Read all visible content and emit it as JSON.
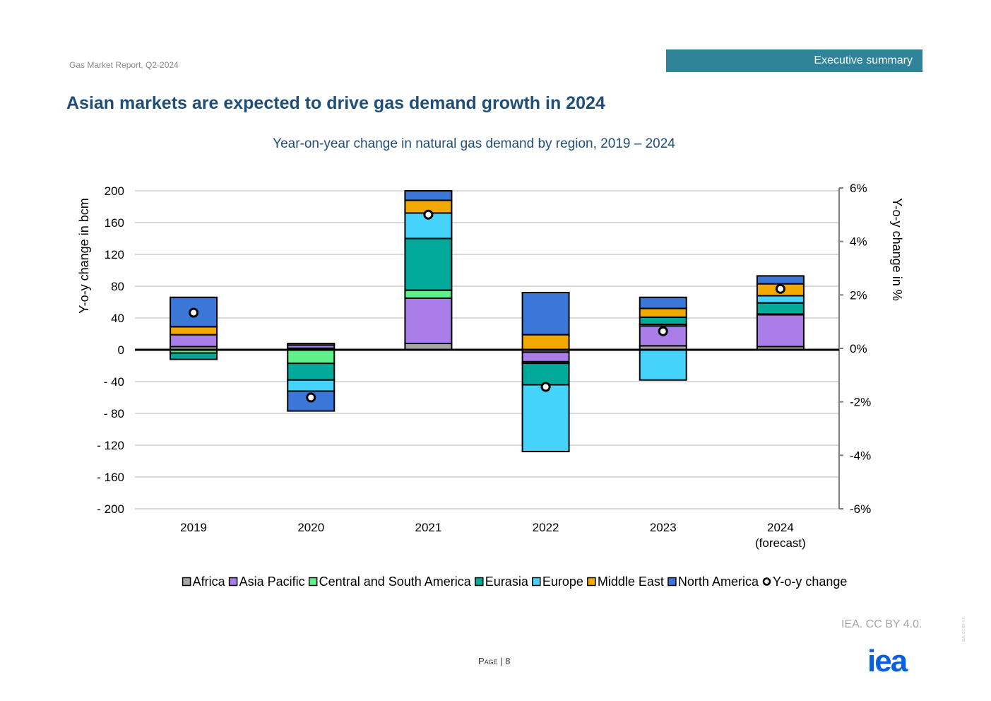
{
  "header": {
    "report": "Gas Market Report, Q2-2024",
    "section": "Executive summary"
  },
  "page_title": "Asian markets are expected to drive gas demand growth in 2024",
  "footer": {
    "credit": "IEA. CC BY 4.0.",
    "page_label": "Page | 8",
    "logo": "iea",
    "side_note": "IEA. CC BY 4.0."
  },
  "colors": {
    "Africa": "#a6a6a6",
    "Asia Pacific": "#a97ee8",
    "Central and South America": "#5ff08a",
    "Eurasia": "#00a99a",
    "Europe": "#45d3fb",
    "Middle East": "#f1a900",
    "North America": "#3b77d6",
    "axis": "#000000",
    "grid": "#d9d9d9",
    "subtitle": "#1f4e79"
  },
  "chart_data": {
    "type": "bar",
    "stacked": true,
    "title": "Year-on-year change in natural gas demand by region, 2019 – 2024",
    "ylabel": "Y-o-y change in bcm",
    "ylabel_right": "Y-o-y change in %",
    "ylim": [
      -200,
      200
    ],
    "ylim_right": [
      -0.06,
      0.06
    ],
    "yticks": [
      "200",
      "160",
      "120",
      "80",
      "40",
      "0",
      "- 40",
      "- 80",
      "- 120",
      "- 160",
      "- 200"
    ],
    "yticks_right": [
      "6%",
      "4%",
      "2%",
      "0%",
      "-2%",
      "-4%",
      "-6%"
    ],
    "grid": true,
    "legend_position": "bottom",
    "categories": [
      "2019",
      "2020",
      "2021",
      "2022",
      "2023",
      "2024\n(forecast)"
    ],
    "series": [
      {
        "name": "Africa",
        "values": [
          4,
          2,
          8,
          -3,
          5,
          4
        ]
      },
      {
        "name": "Asia Pacific",
        "values": [
          15,
          4,
          57,
          -12,
          25,
          40
        ]
      },
      {
        "name": "Central and South America",
        "values": [
          -4,
          -17,
          10,
          -2,
          2,
          1
        ]
      },
      {
        "name": "Eurasia",
        "values": [
          -8,
          -21,
          65,
          -27,
          9,
          14
        ]
      },
      {
        "name": "Europe",
        "values": [
          0,
          -14,
          32,
          -84,
          -38,
          9
        ]
      },
      {
        "name": "Middle East",
        "values": [
          10,
          2,
          16,
          19,
          11,
          15
        ]
      },
      {
        "name": "North America",
        "values": [
          37,
          -25,
          12,
          53,
          14,
          10
        ]
      }
    ],
    "line_series": {
      "name": "Y-o-y change",
      "axis": "right",
      "values": [
        0.014,
        -0.018,
        0.051,
        -0.014,
        0.007,
        0.023
      ]
    }
  }
}
